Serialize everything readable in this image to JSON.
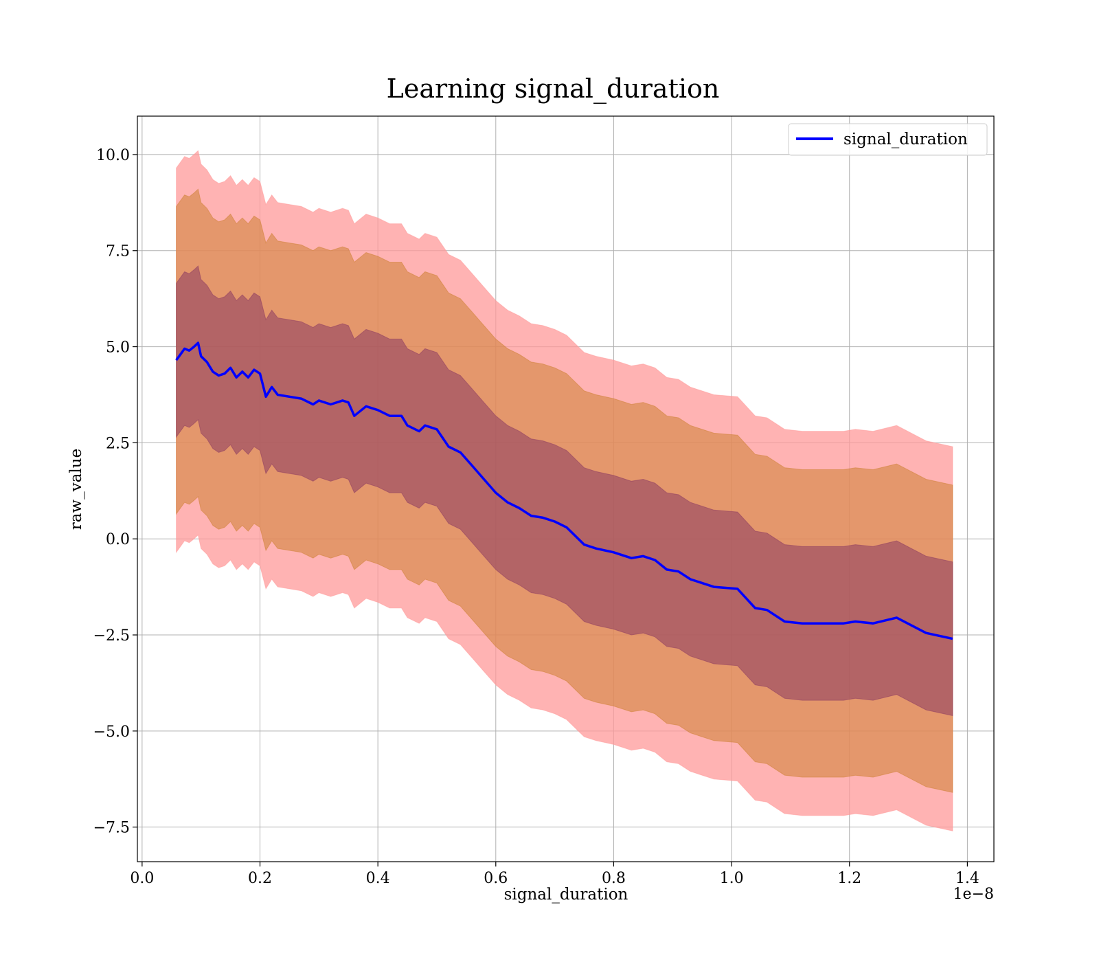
{
  "chart_data": {
    "type": "line",
    "title": "Learning signal_duration",
    "xlabel": "signal_duration",
    "ylabel": "raw_value",
    "x_offset_label": "1e−8",
    "xlim": [
      -0.008,
      1.445
    ],
    "ylim": [
      -8.4,
      11.0
    ],
    "x_ticks": [
      0.0,
      0.2,
      0.4,
      0.6,
      0.8,
      1.0,
      1.2,
      1.4
    ],
    "x_tick_labels": [
      "0.0",
      "0.2",
      "0.4",
      "0.6",
      "0.8",
      "1.0",
      "1.2",
      "1.4"
    ],
    "y_ticks": [
      -7.5,
      -5.0,
      -2.5,
      0.0,
      2.5,
      5.0,
      7.5,
      10.0
    ],
    "y_tick_labels": [
      "−7.5",
      "−5.0",
      "−2.5",
      "0.0",
      "2.5",
      "5.0",
      "7.5",
      "10.0"
    ],
    "grid": true,
    "legend_position": "top-right",
    "band_offsets": [
      2.0,
      4.0,
      5.0
    ],
    "band_colors": [
      "#8b3a62",
      "#cd7f32",
      "#ff9999"
    ],
    "band_opacities": [
      0.55,
      0.55,
      0.75
    ],
    "series": [
      {
        "name": "signal_duration",
        "color": "#0000ff",
        "x": [
          0.058,
          0.065,
          0.072,
          0.08,
          0.088,
          0.095,
          0.1,
          0.11,
          0.12,
          0.13,
          0.14,
          0.15,
          0.16,
          0.17,
          0.18,
          0.19,
          0.2,
          0.21,
          0.22,
          0.23,
          0.25,
          0.27,
          0.29,
          0.3,
          0.32,
          0.34,
          0.35,
          0.36,
          0.38,
          0.4,
          0.42,
          0.44,
          0.45,
          0.47,
          0.48,
          0.5,
          0.52,
          0.54,
          0.56,
          0.58,
          0.6,
          0.62,
          0.64,
          0.66,
          0.68,
          0.7,
          0.72,
          0.75,
          0.77,
          0.8,
          0.83,
          0.85,
          0.87,
          0.89,
          0.91,
          0.93,
          0.97,
          1.01,
          1.04,
          1.06,
          1.09,
          1.12,
          1.16,
          1.19,
          1.21,
          1.24,
          1.28,
          1.33,
          1.375
        ],
        "values": [
          4.65,
          4.8,
          4.95,
          4.9,
          5.0,
          5.1,
          4.75,
          4.6,
          4.35,
          4.25,
          4.3,
          4.45,
          4.2,
          4.35,
          4.2,
          4.4,
          4.3,
          3.7,
          3.95,
          3.75,
          3.7,
          3.65,
          3.5,
          3.6,
          3.5,
          3.6,
          3.55,
          3.2,
          3.45,
          3.35,
          3.2,
          3.2,
          2.95,
          2.8,
          2.95,
          2.85,
          2.4,
          2.25,
          1.9,
          1.55,
          1.2,
          0.95,
          0.8,
          0.6,
          0.55,
          0.45,
          0.3,
          -0.15,
          -0.25,
          -0.35,
          -0.5,
          -0.45,
          -0.55,
          -0.8,
          -0.85,
          -1.05,
          -1.25,
          -1.3,
          -1.8,
          -1.85,
          -2.15,
          -2.2,
          -2.2,
          -2.2,
          -2.15,
          -2.2,
          -2.05,
          -2.45,
          -2.6
        ]
      }
    ]
  }
}
